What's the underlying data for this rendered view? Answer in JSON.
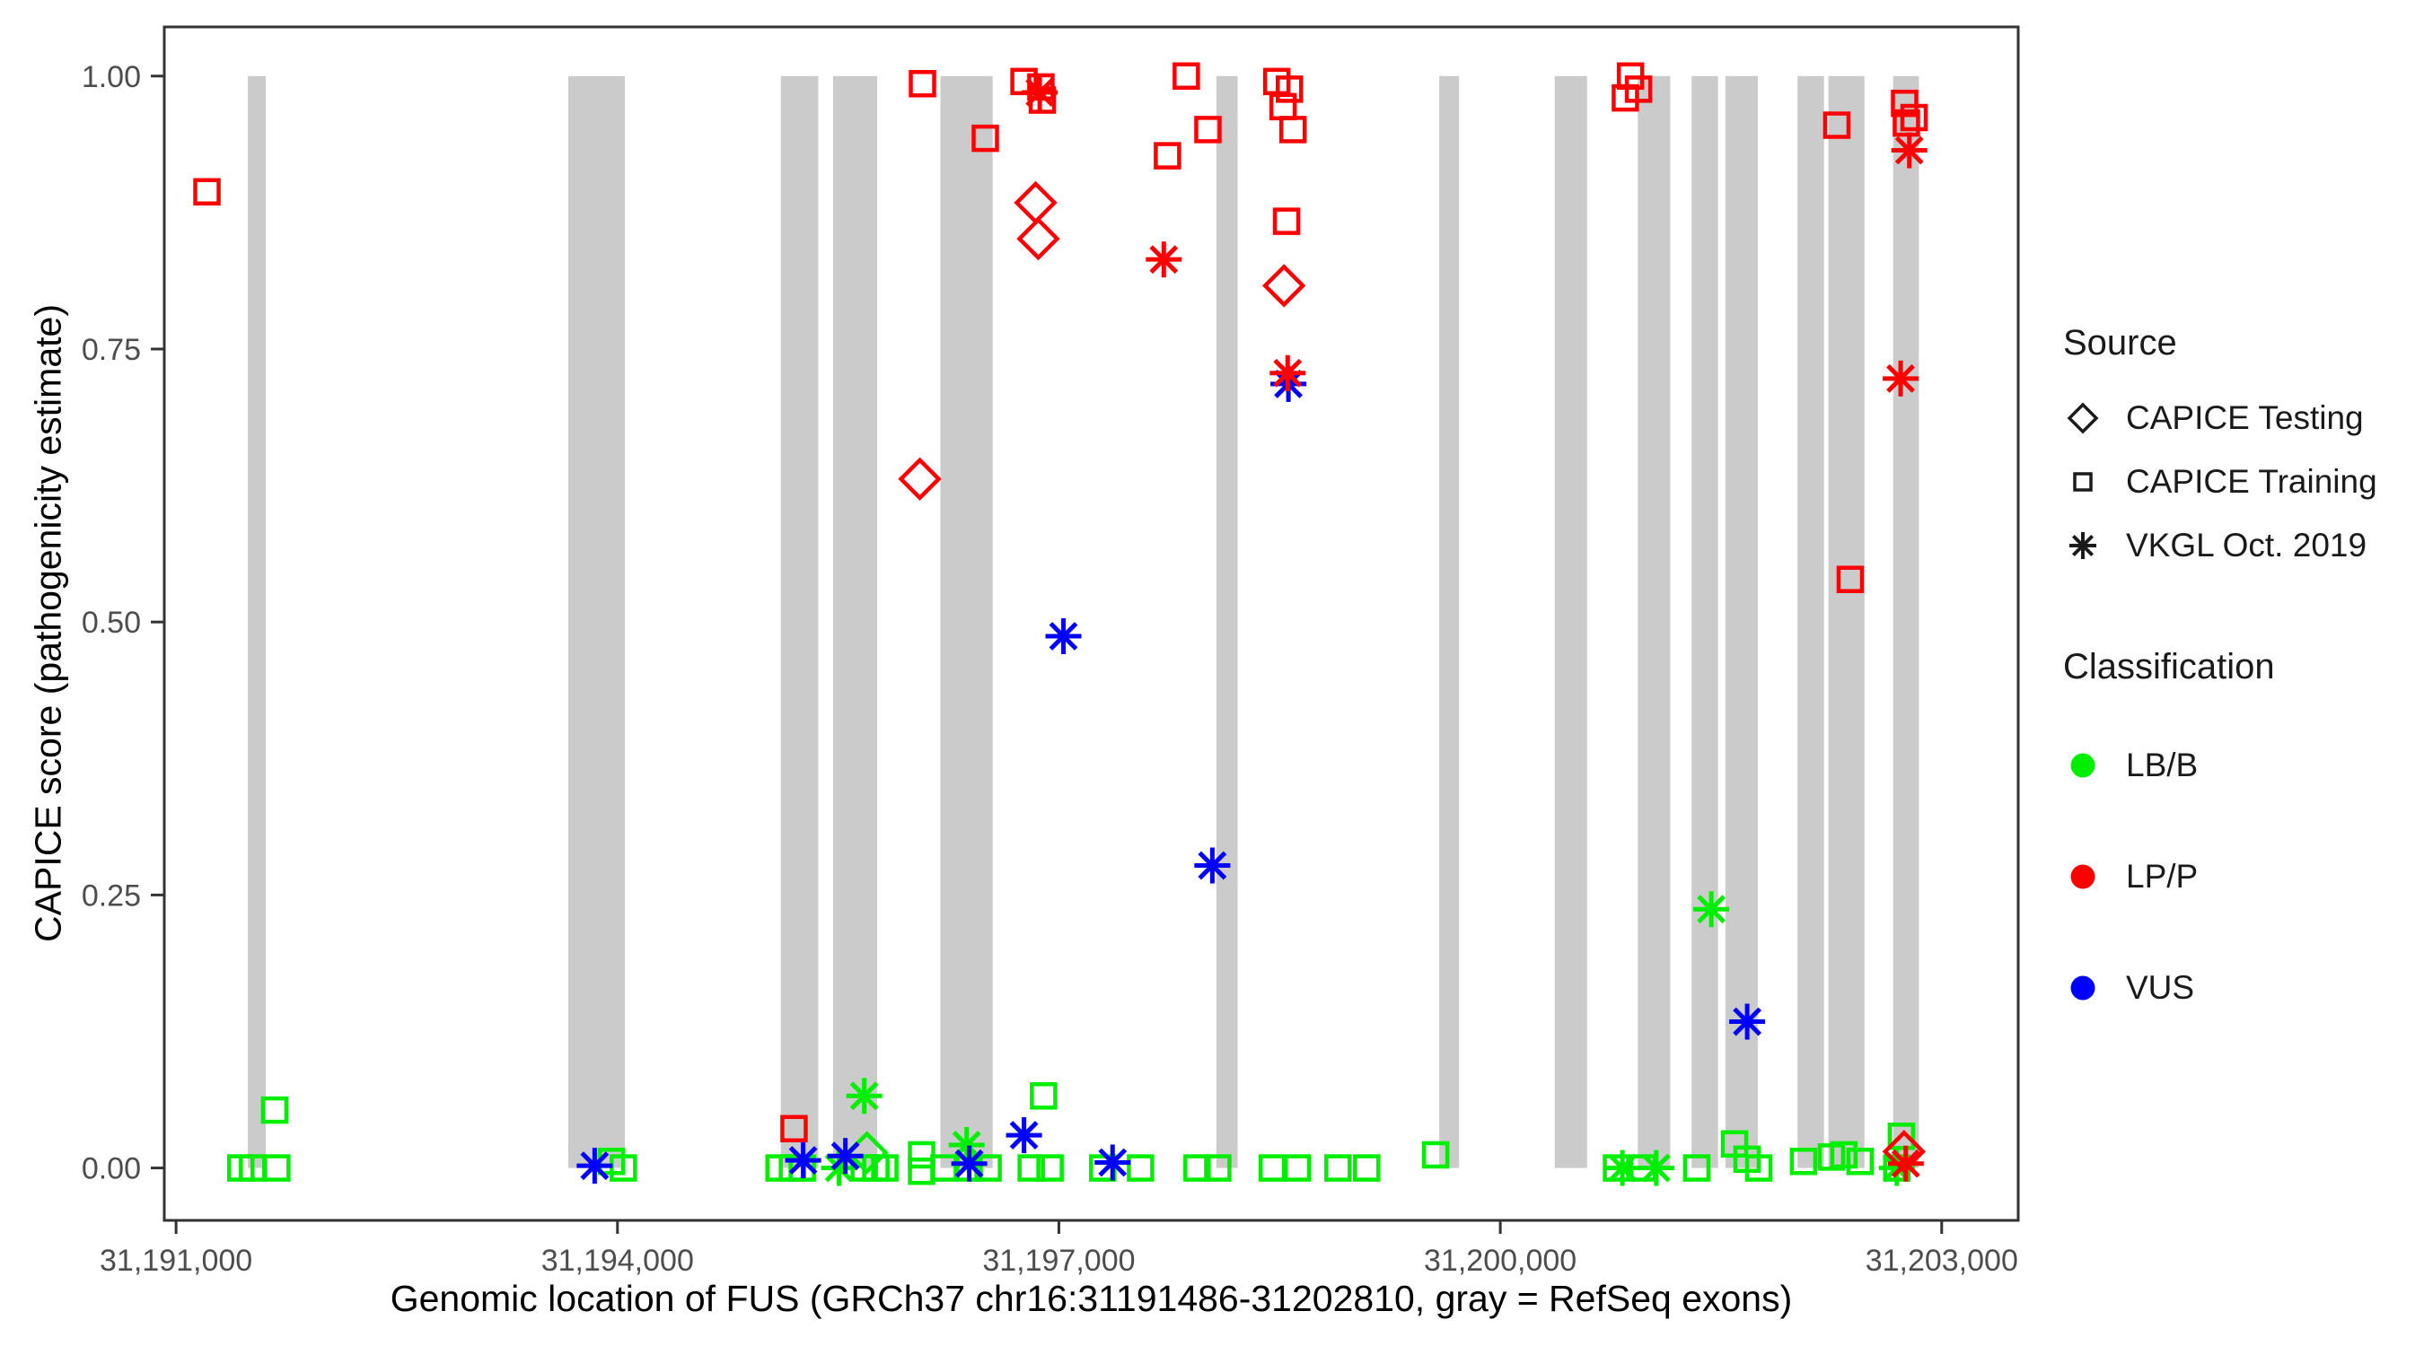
{
  "colors": {
    "exon_gray": "#CBCBCB",
    "panel_border": "#333333",
    "tick_label": "#4D4D4D",
    "classification": {
      "LB/B": "#00EE00",
      "LP/P": "#FF0000",
      "VUS": "#0000FF"
    }
  },
  "legend": {
    "source": {
      "title": "Source",
      "items": [
        {
          "label": "CAPICE Testing",
          "shape": "diamond",
          "icon": "diamond-icon"
        },
        {
          "label": "CAPICE Training",
          "shape": "square",
          "icon": "square-icon"
        },
        {
          "label": "VKGL Oct. 2019",
          "shape": "asterisk",
          "icon": "asterisk-icon"
        }
      ]
    },
    "classification": {
      "title": "Classification",
      "items": [
        {
          "label": "LB/B",
          "color": "#00EE00"
        },
        {
          "label": "LP/P",
          "color": "#FF0000"
        },
        {
          "label": "VUS",
          "color": "#0000FF"
        }
      ]
    }
  },
  "chart_data": {
    "type": "scatter",
    "title": "",
    "xlabel": "Genomic location of FUS (GRCh37 chr16:31191486-31202810, gray = RefSeq exons)",
    "ylabel": "CAPICE score (pathogenicity estimate)",
    "xlim": [
      31190920,
      31203520
    ],
    "ylim": [
      -0.048,
      1.045
    ],
    "grid": "off",
    "legend_position": "right",
    "x_ticks": [
      {
        "v": 31191000,
        "label": "31,191,000"
      },
      {
        "v": 31194000,
        "label": "31,194,000"
      },
      {
        "v": 31197000,
        "label": "31,197,000"
      },
      {
        "v": 31200000,
        "label": "31,200,000"
      },
      {
        "v": 31203000,
        "label": "31,203,000"
      }
    ],
    "y_ticks": [
      {
        "v": 0.0,
        "label": "0.00"
      },
      {
        "v": 0.25,
        "label": "0.25"
      },
      {
        "v": 0.5,
        "label": "0.50"
      },
      {
        "v": 0.75,
        "label": "0.75"
      },
      {
        "v": 1.0,
        "label": "1.00"
      }
    ],
    "exons_note": "gray rectangles span CAPICE score 0 to 1; values are GRCh37 chr16 bp ranges",
    "exons": [
      [
        31191488,
        31191610
      ],
      [
        31193665,
        31194050
      ],
      [
        31195110,
        31195365
      ],
      [
        31195465,
        31195765
      ],
      [
        31196195,
        31196550
      ],
      [
        31198070,
        31198215
      ],
      [
        31199585,
        31199720
      ],
      [
        31200370,
        31200590
      ],
      [
        31200935,
        31201155
      ],
      [
        31201300,
        31201480
      ],
      [
        31201530,
        31201750
      ],
      [
        31202020,
        31202200
      ],
      [
        31202230,
        31202475
      ],
      [
        31202670,
        31202845
      ]
    ],
    "point_format": [
      "genomic_bp",
      "capice_score",
      "source(testing|training|vkgl)",
      "classification"
    ],
    "points": [
      [
        31191440,
        0.0,
        "training",
        "LB/B"
      ],
      [
        31191520,
        0.0,
        "training",
        "LB/B"
      ],
      [
        31191685,
        0.0,
        "training",
        "LB/B"
      ],
      [
        31191670,
        0.053,
        "training",
        "LB/B"
      ],
      [
        31193960,
        0.006,
        "training",
        "LB/B"
      ],
      [
        31194040,
        0.0,
        "training",
        "LB/B"
      ],
      [
        31195098,
        0.0,
        "training",
        "LB/B"
      ],
      [
        31195189,
        0.0,
        "training",
        "LB/B"
      ],
      [
        31195256,
        0.0,
        "training",
        "LB/B"
      ],
      [
        31195677,
        0.0,
        "training",
        "LB/B"
      ],
      [
        31195756,
        0.0,
        "training",
        "LB/B"
      ],
      [
        31195817,
        0.0,
        "training",
        "LB/B"
      ],
      [
        31196067,
        0.012,
        "training",
        "LB/B"
      ],
      [
        31196067,
        -0.003,
        "training",
        "LB/B"
      ],
      [
        31196219,
        0.0,
        "training",
        "LB/B"
      ],
      [
        31196390,
        0.0,
        "training",
        "LB/B"
      ],
      [
        31196519,
        0.0,
        "training",
        "LB/B"
      ],
      [
        31196812,
        0.0,
        "training",
        "LB/B"
      ],
      [
        31196896,
        0.066,
        "training",
        "LB/B"
      ],
      [
        31196940,
        0.0,
        "training",
        "LB/B"
      ],
      [
        31197298,
        0.0,
        "training",
        "LB/B"
      ],
      [
        31197555,
        0.0,
        "training",
        "LB/B"
      ],
      [
        31197939,
        0.0,
        "training",
        "LB/B"
      ],
      [
        31198080,
        0.0,
        "training",
        "LB/B"
      ],
      [
        31198451,
        0.0,
        "training",
        "LB/B"
      ],
      [
        31198622,
        0.0,
        "training",
        "LB/B"
      ],
      [
        31198897,
        0.0,
        "training",
        "LB/B"
      ],
      [
        31199092,
        0.0,
        "training",
        "LB/B"
      ],
      [
        31199561,
        0.012,
        "training",
        "LB/B"
      ],
      [
        31200790,
        0.0,
        "training",
        "LB/B"
      ],
      [
        31200970,
        0.0,
        "training",
        "LB/B"
      ],
      [
        31201335,
        0.0,
        "training",
        "LB/B"
      ],
      [
        31201592,
        0.022,
        "training",
        "LB/B"
      ],
      [
        31201677,
        0.008,
        "training",
        "LB/B"
      ],
      [
        31201757,
        0.0,
        "training",
        "LB/B"
      ],
      [
        31202061,
        0.006,
        "training",
        "LB/B"
      ],
      [
        31202250,
        0.01,
        "training",
        "LB/B"
      ],
      [
        31202335,
        0.012,
        "training",
        "LB/B"
      ],
      [
        31202445,
        0.006,
        "training",
        "LB/B"
      ],
      [
        31202726,
        0.029,
        "training",
        "LB/B"
      ],
      [
        31202695,
        0.0,
        "training",
        "LB/B"
      ],
      [
        31195695,
        0.014,
        "testing",
        "LB/B"
      ],
      [
        31195506,
        0.0,
        "vkgl",
        "LB/B"
      ],
      [
        31195677,
        0.066,
        "vkgl",
        "LB/B"
      ],
      [
        31196373,
        0.021,
        "vkgl",
        "LB/B"
      ],
      [
        31200830,
        0.0,
        "vkgl",
        "LB/B"
      ],
      [
        31201060,
        0.0,
        "vkgl",
        "LB/B"
      ],
      [
        31201434,
        0.237,
        "vkgl",
        "LB/B"
      ],
      [
        31202695,
        0.0,
        "vkgl",
        "LB/B"
      ],
      [
        31193845,
        0.002,
        "vkgl",
        "VUS"
      ],
      [
        31195262,
        0.007,
        "vkgl",
        "VUS"
      ],
      [
        31195549,
        0.011,
        "vkgl",
        "VUS"
      ],
      [
        31196391,
        0.004,
        "vkgl",
        "VUS"
      ],
      [
        31196763,
        0.03,
        "vkgl",
        "VUS"
      ],
      [
        31197031,
        0.487,
        "vkgl",
        "VUS"
      ],
      [
        31197365,
        0.005,
        "vkgl",
        "VUS"
      ],
      [
        31198043,
        0.277,
        "vkgl",
        "VUS"
      ],
      [
        31198560,
        0.718,
        "vkgl",
        "VUS"
      ],
      [
        31201678,
        0.134,
        "vkgl",
        "VUS"
      ],
      [
        31191210,
        0.894,
        "training",
        "LP/P"
      ],
      [
        31195200,
        0.036,
        "training",
        "LP/P"
      ],
      [
        31196073,
        0.993,
        "training",
        "LP/P"
      ],
      [
        31196500,
        0.943,
        "training",
        "LP/P"
      ],
      [
        31196763,
        0.995,
        "training",
        "LP/P"
      ],
      [
        31196878,
        0.99,
        "training",
        "LP/P"
      ],
      [
        31196888,
        0.978,
        "training",
        "LP/P"
      ],
      [
        31197738,
        0.927,
        "training",
        "LP/P"
      ],
      [
        31197866,
        1.0,
        "training",
        "LP/P"
      ],
      [
        31198013,
        0.951,
        "training",
        "LP/P"
      ],
      [
        31198481,
        0.995,
        "training",
        "LP/P"
      ],
      [
        31198524,
        0.972,
        "training",
        "LP/P"
      ],
      [
        31198548,
        0.867,
        "training",
        "LP/P"
      ],
      [
        31198567,
        0.988,
        "training",
        "LP/P"
      ],
      [
        31198591,
        0.951,
        "training",
        "LP/P"
      ],
      [
        31200850,
        0.98,
        "training",
        "LP/P"
      ],
      [
        31200885,
        1.0,
        "training",
        "LP/P"
      ],
      [
        31200940,
        0.988,
        "training",
        "LP/P"
      ],
      [
        31202287,
        0.955,
        "training",
        "LP/P"
      ],
      [
        31202379,
        0.539,
        "training",
        "LP/P"
      ],
      [
        31202748,
        0.975,
        "training",
        "LP/P"
      ],
      [
        31202760,
        0.957,
        "training",
        "LP/P"
      ],
      [
        31202812,
        0.962,
        "training",
        "LP/P"
      ],
      [
        31196055,
        0.631,
        "testing",
        "LP/P"
      ],
      [
        31196842,
        0.884,
        "testing",
        "LP/P"
      ],
      [
        31196860,
        0.851,
        "testing",
        "LP/P"
      ],
      [
        31198530,
        0.808,
        "testing",
        "LP/P"
      ],
      [
        31202744,
        0.015,
        "testing",
        "LP/P"
      ],
      [
        31196870,
        0.985,
        "vkgl",
        "LP/P"
      ],
      [
        31197713,
        0.832,
        "vkgl",
        "LP/P"
      ],
      [
        31198555,
        0.728,
        "vkgl",
        "LP/P"
      ],
      [
        31202721,
        0.723,
        "vkgl",
        "LP/P"
      ],
      [
        31202780,
        0.932,
        "vkgl",
        "LP/P"
      ],
      [
        31202756,
        0.004,
        "vkgl",
        "LP/P"
      ]
    ]
  }
}
